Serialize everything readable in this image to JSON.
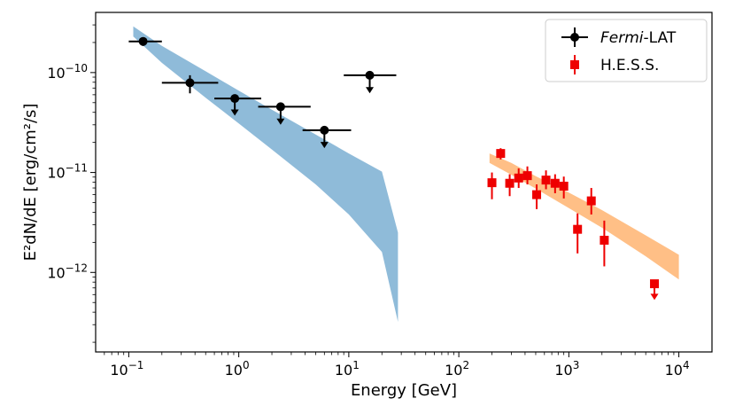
{
  "chart_data": {
    "type": "scatter",
    "title": "",
    "xlabel": "Energy [GeV]",
    "ylabel": "E²dN/dE [erg/cm²/s]",
    "xscale": "log",
    "yscale": "log",
    "xlim": [
      0.05,
      20000
    ],
    "ylim": [
      1.6e-13,
      4e-10
    ],
    "x_ticks": [
      {
        "value": 0.1,
        "base": "10",
        "exp": "−1"
      },
      {
        "value": 1,
        "base": "10",
        "exp": "0"
      },
      {
        "value": 10,
        "base": "10",
        "exp": "1"
      },
      {
        "value": 100,
        "base": "10",
        "exp": "2"
      },
      {
        "value": 1000,
        "base": "10",
        "exp": "3"
      },
      {
        "value": 10000,
        "base": "10",
        "exp": "4"
      }
    ],
    "y_ticks": [
      {
        "value": 1e-10,
        "base": "10",
        "exp": "−10"
      },
      {
        "value": 1e-11,
        "base": "10",
        "exp": "−11"
      },
      {
        "value": 1e-12,
        "base": "10",
        "exp": "−12"
      }
    ],
    "legend": {
      "position": "top-right",
      "entries": [
        {
          "italic": "Fermi",
          "rest": "-LAT",
          "color": "#000000",
          "marker": "circle"
        },
        {
          "italic": "",
          "rest": "H.E.S.S.",
          "color": "#ee0000",
          "marker": "square"
        }
      ]
    },
    "bands": [
      {
        "name": "Fermi-LAT fit band",
        "color": "#1f77b4",
        "x": [
          0.11,
          0.2,
          0.5,
          1,
          2,
          5,
          10,
          20,
          28
        ],
        "y_high": [
          2.9e-10,
          1.85e-10,
          1.03e-10,
          6.6e-11,
          4.25e-11,
          2.4e-11,
          1.55e-11,
          1.02e-11,
          2.5e-12
        ],
        "y_low": [
          2.3e-10,
          1.25e-10,
          5.6e-11,
          3.1e-11,
          1.7e-11,
          7.6e-12,
          3.8e-12,
          1.6e-12,
          3.2e-13
        ]
      },
      {
        "name": "H.E.S.S. fit band",
        "color": "#ff7f0e",
        "x": [
          190,
          300,
          500,
          1000,
          2000,
          5000,
          10000
        ],
        "y_high": [
          1.55e-11,
          1.25e-11,
          9.2e-12,
          6.3e-12,
          4.2e-12,
          2.35e-12,
          1.5e-12
        ],
        "y_low": [
          1.25e-11,
          9.5e-12,
          6.9e-12,
          4.4e-12,
          2.8e-12,
          1.45e-12,
          8.5e-13
        ]
      }
    ],
    "series": [
      {
        "name": "Fermi-LAT",
        "color": "#000000",
        "marker": "circle",
        "points": [
          {
            "x": 0.135,
            "y": 2.05e-10,
            "xlo": 0.1,
            "xhi": 0.2,
            "ylo": 1.85e-10,
            "yhi": 2.25e-10,
            "ul": false
          },
          {
            "x": 0.36,
            "y": 7.9e-11,
            "xlo": 0.2,
            "xhi": 0.65,
            "ylo": 6.2e-11,
            "yhi": 9.4e-11,
            "ul": false
          },
          {
            "x": 0.92,
            "y": 5.5e-11,
            "xlo": 0.6,
            "xhi": 1.6,
            "ylo": 3.7e-11,
            "yhi": 5.5e-11,
            "ul": true
          },
          {
            "x": 2.4,
            "y": 4.55e-11,
            "xlo": 1.5,
            "xhi": 4.5,
            "ylo": 3e-11,
            "yhi": 4.55e-11,
            "ul": true
          },
          {
            "x": 6.0,
            "y": 2.65e-11,
            "xlo": 3.8,
            "xhi": 10.5,
            "ylo": 1.75e-11,
            "yhi": 2.65e-11,
            "ul": true
          },
          {
            "x": 15.5,
            "y": 9.4e-11,
            "xlo": 9.0,
            "xhi": 27.0,
            "ylo": 6.2e-11,
            "yhi": 9.4e-11,
            "ul": true
          }
        ]
      },
      {
        "name": "H.E.S.S.",
        "color": "#ee0000",
        "marker": "square",
        "points": [
          {
            "x": 200,
            "y": 7.9e-12,
            "ylo": 5.4e-12,
            "yhi": 1e-11,
            "ul": false
          },
          {
            "x": 240,
            "y": 1.55e-11,
            "ylo": 1.35e-11,
            "yhi": 1.75e-11,
            "ul": false
          },
          {
            "x": 290,
            "y": 7.8e-12,
            "ylo": 5.8e-12,
            "yhi": 9.6e-12,
            "ul": false
          },
          {
            "x": 350,
            "y": 8.8e-12,
            "ylo": 7e-12,
            "yhi": 1.1e-11,
            "ul": false
          },
          {
            "x": 420,
            "y": 9.3e-12,
            "ylo": 7.6e-12,
            "yhi": 1.15e-11,
            "ul": false
          },
          {
            "x": 510,
            "y": 6e-12,
            "ylo": 4.3e-12,
            "yhi": 7.6e-12,
            "ul": false
          },
          {
            "x": 620,
            "y": 8.4e-12,
            "ylo": 6.8e-12,
            "yhi": 1.05e-11,
            "ul": false
          },
          {
            "x": 750,
            "y": 7.8e-12,
            "ylo": 6.2e-12,
            "yhi": 9.6e-12,
            "ul": false
          },
          {
            "x": 900,
            "y": 7.3e-12,
            "ylo": 5.5e-12,
            "yhi": 9.1e-12,
            "ul": false
          },
          {
            "x": 1200,
            "y": 2.7e-12,
            "ylo": 1.55e-12,
            "yhi": 3.9e-12,
            "ul": false
          },
          {
            "x": 1600,
            "y": 5.2e-12,
            "ylo": 3.8e-12,
            "yhi": 7e-12,
            "ul": false
          },
          {
            "x": 2100,
            "y": 2.1e-12,
            "ylo": 1.15e-12,
            "yhi": 3.3e-12,
            "ul": false
          },
          {
            "x": 6000,
            "y": 7.7e-13,
            "ylo": 5.3e-13,
            "yhi": 7.7e-13,
            "ul": true
          }
        ]
      }
    ]
  }
}
